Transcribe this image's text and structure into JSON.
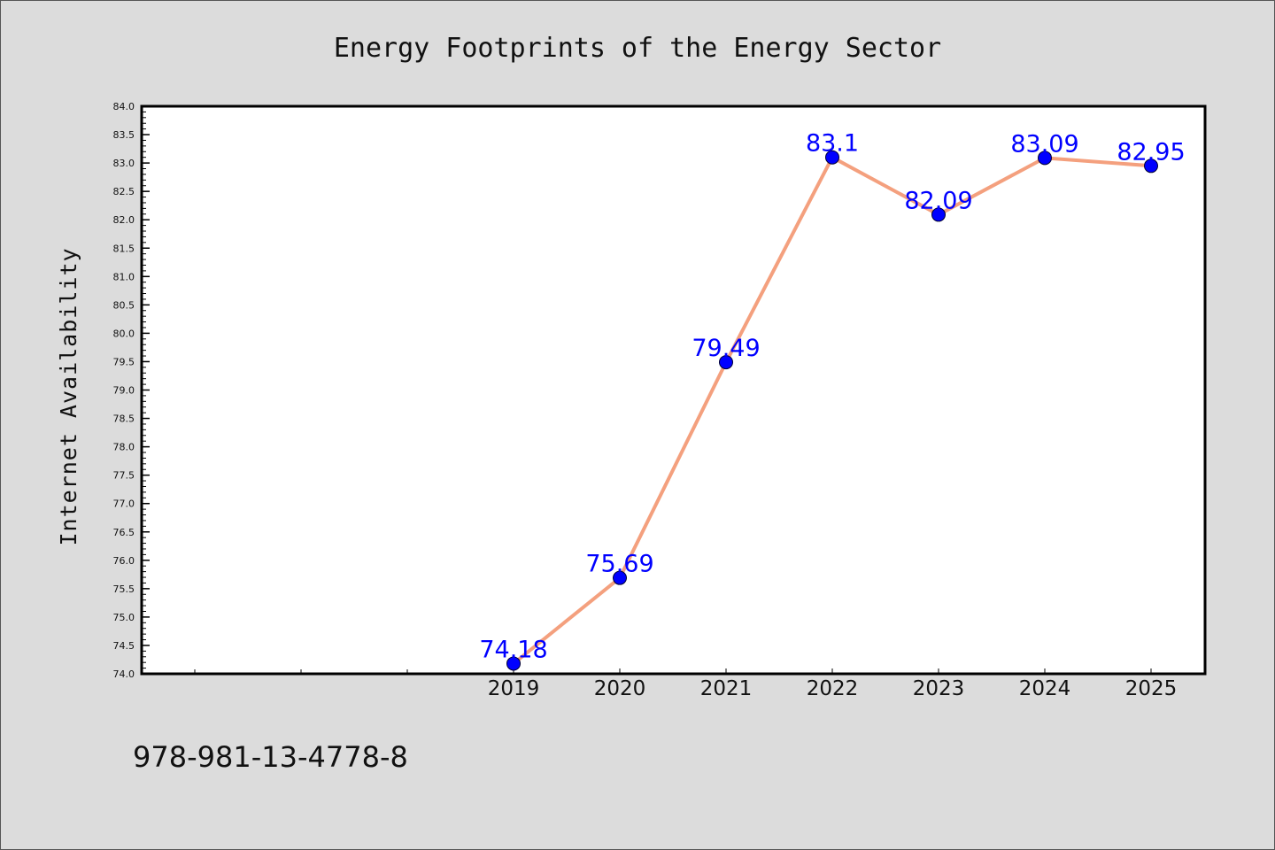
{
  "chart_data": {
    "type": "line",
    "title": "Energy Footprints of the Energy Sector",
    "xlabel": "",
    "ylabel": "Internet Availability",
    "categories": [
      "2019",
      "2020",
      "2021",
      "2022",
      "2023",
      "2024",
      "2025"
    ],
    "values": [
      74.18,
      75.69,
      79.49,
      83.1,
      82.09,
      83.09,
      82.95
    ],
    "value_labels": [
      "74.18",
      "75.69",
      "79.49",
      "83.1",
      "82.09",
      "83.09",
      "82.95"
    ],
    "ylim": [
      74.0,
      84.0
    ],
    "y_ticks": [
      "74.0",
      "74.5",
      "75.0",
      "75.5",
      "76.0",
      "76.5",
      "77.0",
      "77.5",
      "78.0",
      "78.5",
      "79.0",
      "79.5",
      "80.0",
      "80.5",
      "81.0",
      "81.5",
      "82.0",
      "82.5",
      "83.0",
      "83.5",
      "84.0"
    ],
    "grid": false,
    "line_color": "#f4a07e",
    "marker_color": "#0000ff",
    "label_color": "#0000ff"
  },
  "footer": {
    "isbn": "978-981-13-4778-8"
  }
}
